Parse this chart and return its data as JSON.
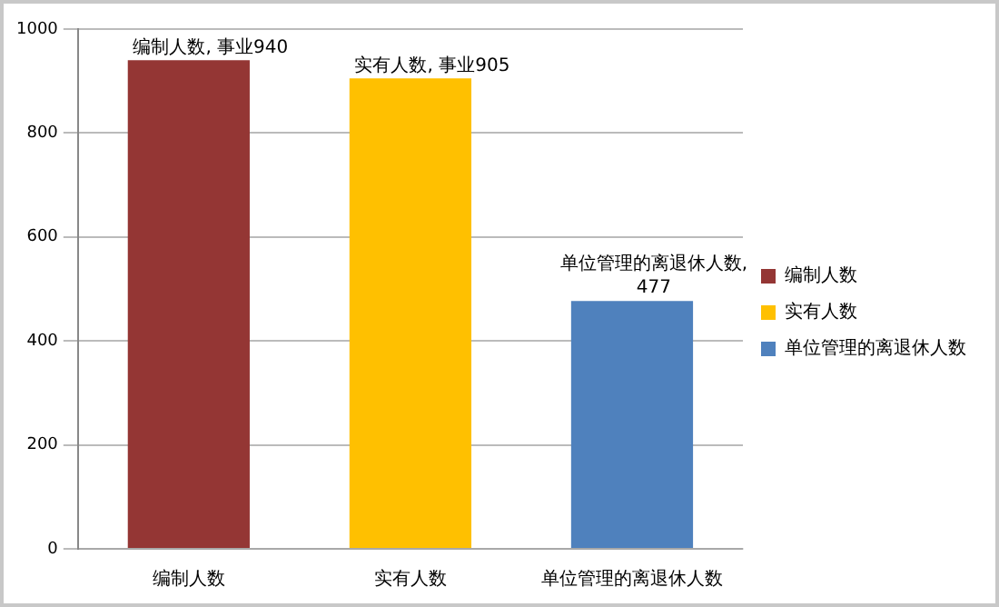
{
  "chart_data": {
    "type": "bar",
    "categories": [
      "编制人数",
      "实有人数",
      "单位管理的离退休人数"
    ],
    "series": [
      {
        "name": "编制人数",
        "color": "#943634",
        "values": [
          940,
          null,
          null
        ],
        "value_labels": [
          "编制人数, 事业940",
          null,
          null
        ]
      },
      {
        "name": "实有人数",
        "color": "#ffc000",
        "values": [
          null,
          905,
          null
        ],
        "value_labels": [
          null,
          "实有人数, 事业905",
          null
        ]
      },
      {
        "name": "单位管理的离退休人数",
        "color": "#4f81bd",
        "values": [
          null,
          null,
          477
        ],
        "value_labels": [
          null,
          null,
          "单位管理的离退休人数, 477"
        ]
      }
    ],
    "ylim": [
      0,
      1000
    ],
    "yticks": [
      0,
      200,
      400,
      600,
      800,
      {
        "value": 1000,
        "label": "1000"
      }
    ],
    "grid": "y",
    "legend": "right"
  }
}
